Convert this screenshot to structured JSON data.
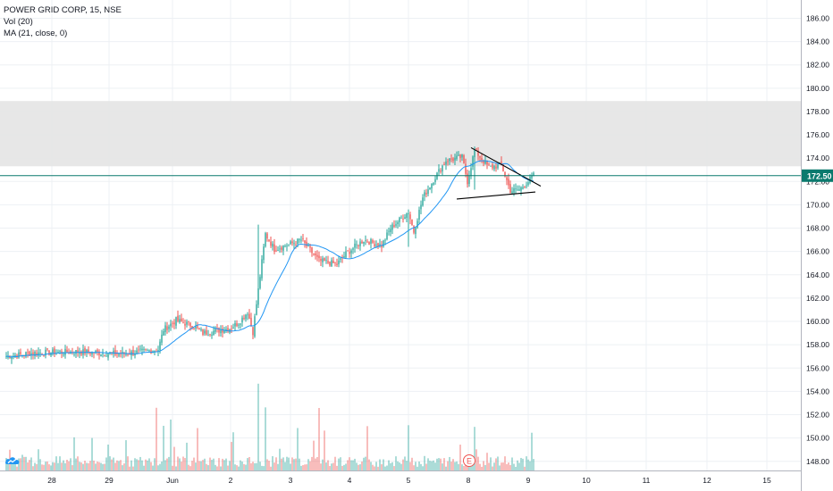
{
  "legend": {
    "symbol_line": "POWER GRID CORP, 15, NSE",
    "vol_line": "Vol (20)",
    "ma_line": "MA (21, close, 0)"
  },
  "current_price_label": "172.50",
  "colors": {
    "up": "#26a69a",
    "down": "#ef5350",
    "ma": "#2196f3",
    "zone": "#e6e6e6",
    "price_line": "#0b7a6e",
    "axis_text": "#131722",
    "grid": "#edf0f4",
    "trendline": "#000000"
  },
  "icons": {
    "logo": "tradingview-logo-icon",
    "earnings": "earnings-marker-icon"
  },
  "earnings_marker_label": "E",
  "chart_data": {
    "type": "candlestick",
    "title": "POWER GRID CORP, 15, NSE",
    "ylim": [
      147.6,
      186.8
    ],
    "y_ticks": [
      "186.00",
      "184.00",
      "182.00",
      "180.00",
      "178.00",
      "176.00",
      "174.00",
      "172.00",
      "170.00",
      "168.00",
      "166.00",
      "164.00",
      "162.00",
      "160.00",
      "158.00",
      "156.00",
      "154.00",
      "152.00",
      "150.00",
      "148.00"
    ],
    "x_ticks": [
      "28",
      "29",
      "Jun",
      "2",
      "3",
      "4",
      "5",
      "8",
      "9",
      "10",
      "11",
      "12",
      "15"
    ],
    "current_price": 172.5,
    "resistance_zone": [
      173.3,
      178.9
    ],
    "anchors": [
      {
        "t": 0,
        "c": 157.0
      },
      {
        "t": 15,
        "c": 157.3
      },
      {
        "t": 40,
        "c": 157.4
      },
      {
        "t": 65,
        "c": 157.2
      },
      {
        "t": 85,
        "c": 157.6
      },
      {
        "t": 88,
        "c": 159.3
      },
      {
        "t": 95,
        "c": 160.1
      },
      {
        "t": 105,
        "c": 159.6
      },
      {
        "t": 110,
        "c": 159.0
      },
      {
        "t": 125,
        "c": 159.4
      },
      {
        "t": 130,
        "c": 159.9
      },
      {
        "t": 135,
        "c": 160.8
      },
      {
        "t": 138,
        "c": 159.1
      },
      {
        "t": 141,
        "c": 162.7
      },
      {
        "t": 145,
        "c": 167.5
      },
      {
        "t": 150,
        "c": 166.2
      },
      {
        "t": 160,
        "c": 166.7
      },
      {
        "t": 165,
        "c": 167.0
      },
      {
        "t": 175,
        "c": 165.2
      },
      {
        "t": 185,
        "c": 164.9
      },
      {
        "t": 190,
        "c": 165.8
      },
      {
        "t": 200,
        "c": 167.0
      },
      {
        "t": 210,
        "c": 166.5
      },
      {
        "t": 215,
        "c": 168.0
      },
      {
        "t": 225,
        "c": 169.4
      },
      {
        "t": 228,
        "c": 167.7
      },
      {
        "t": 233,
        "c": 170.6
      },
      {
        "t": 240,
        "c": 172.4
      },
      {
        "t": 246,
        "c": 173.8
      },
      {
        "t": 255,
        "c": 174.1
      },
      {
        "t": 258,
        "c": 172.0
      },
      {
        "t": 262,
        "c": 174.7
      },
      {
        "t": 270,
        "c": 173.2
      },
      {
        "t": 277,
        "c": 173.4
      },
      {
        "t": 282,
        "c": 171.2
      },
      {
        "t": 287,
        "c": 171.3
      },
      {
        "t": 292,
        "c": 172.0
      },
      {
        "t": 295,
        "c": 172.5
      }
    ]
  }
}
